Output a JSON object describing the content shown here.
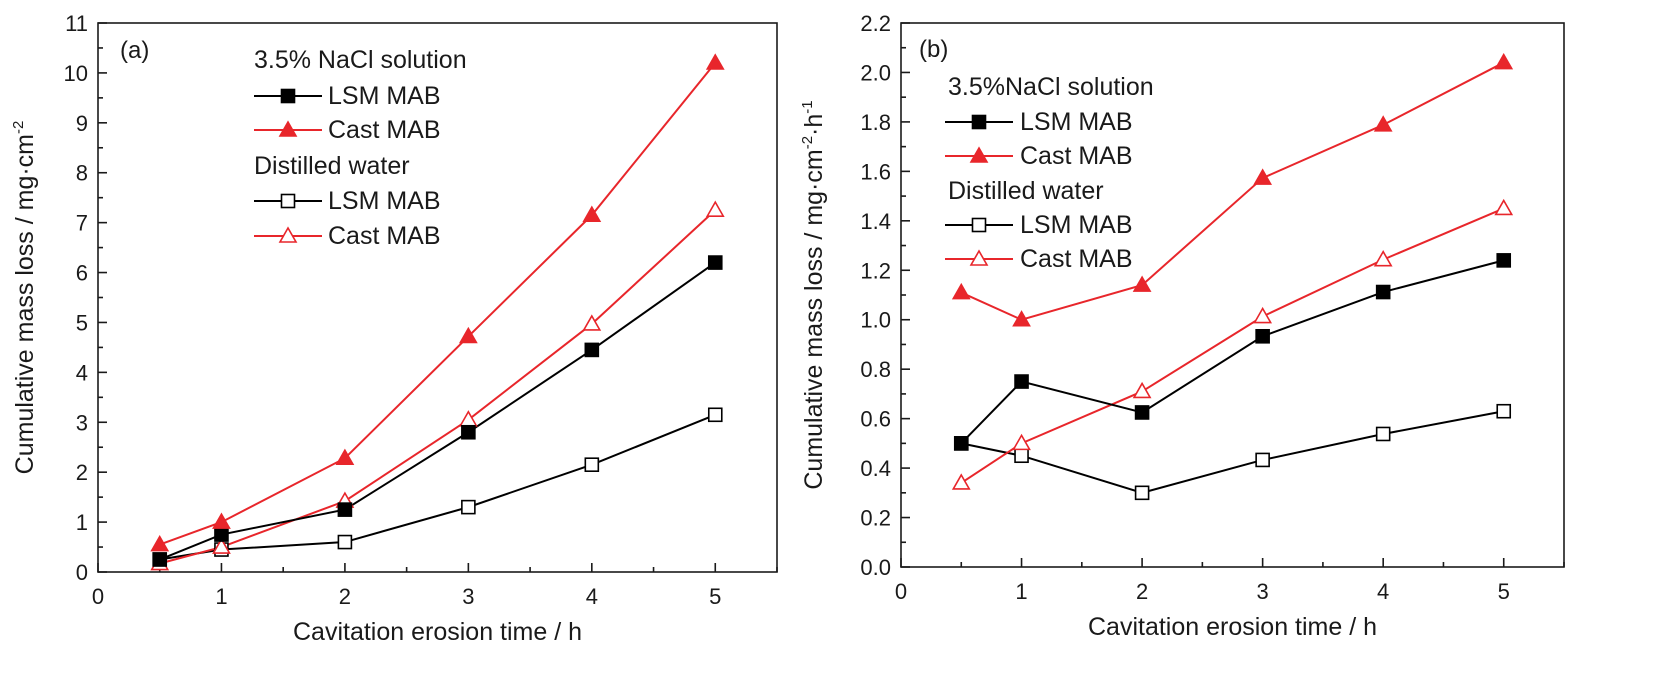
{
  "chart_data": [
    {
      "type": "line",
      "panel_label": "(a)",
      "xlabel": "Cavitation erosion time / h",
      "ylabel": "Cumulative mass loss / mg·cm",
      "ylabel_sup": "-2",
      "xlim": [
        0,
        5.5
      ],
      "ylim": [
        0,
        11
      ],
      "xticks": [
        0,
        1,
        2,
        3,
        4,
        5
      ],
      "yticks": [
        0,
        1,
        2,
        3,
        4,
        5,
        6,
        7,
        8,
        9,
        10,
        11
      ],
      "x": [
        0.5,
        1,
        2,
        3,
        4,
        5
      ],
      "legend_position": "top-left",
      "legend_groups": [
        {
          "title": "3.5% NaCl solution",
          "series": [
            0,
            1
          ]
        },
        {
          "title": "Distilled water",
          "series": [
            2,
            3
          ]
        }
      ],
      "series": [
        {
          "name": "LSM MAB",
          "color": "#000000",
          "marker": "square-filled",
          "values": [
            0.25,
            0.75,
            1.25,
            2.8,
            4.45,
            6.2
          ]
        },
        {
          "name": "Cast MAB",
          "color": "#e8262b",
          "marker": "triangle-filled",
          "values": [
            0.55,
            1.0,
            2.28,
            4.72,
            7.15,
            10.2
          ]
        },
        {
          "name": "LSM MAB",
          "color": "#000000",
          "marker": "square-open",
          "values": [
            0.25,
            0.45,
            0.6,
            1.3,
            2.15,
            3.15
          ]
        },
        {
          "name": "Cast MAB",
          "color": "#e8262b",
          "marker": "triangle-open",
          "values": [
            0.17,
            0.5,
            1.42,
            3.05,
            4.97,
            7.25
          ]
        }
      ]
    },
    {
      "type": "line",
      "panel_label": "(b)",
      "xlabel": "Cavitation erosion time / h",
      "ylabel": "Cumulative mass loss / mg·cm",
      "ylabel_sup": "-2",
      "ylabel_mid": "·h",
      "ylabel_sup2": "-1",
      "xlim": [
        0,
        5.5
      ],
      "ylim": [
        0,
        2.2
      ],
      "xticks": [
        0,
        1,
        2,
        3,
        4,
        5
      ],
      "yticks": [
        0.0,
        0.2,
        0.4,
        0.6,
        0.8,
        1.0,
        1.2,
        1.4,
        1.6,
        1.8,
        2.0,
        2.2
      ],
      "x": [
        0.5,
        1,
        2,
        3,
        4,
        5
      ],
      "legend_position": "top-left",
      "legend_groups": [
        {
          "title": "3.5%NaCl solution",
          "series": [
            0,
            1
          ]
        },
        {
          "title": "Distilled water",
          "series": [
            2,
            3
          ]
        }
      ],
      "series": [
        {
          "name": "LSM MAB",
          "color": "#000000",
          "marker": "square-filled",
          "values": [
            0.5,
            0.75,
            0.625,
            0.933,
            1.112,
            1.24
          ]
        },
        {
          "name": "Cast MAB",
          "color": "#e8262b",
          "marker": "triangle-filled",
          "values": [
            1.11,
            1.0,
            1.14,
            1.573,
            1.788,
            2.04
          ]
        },
        {
          "name": "LSM MAB",
          "color": "#000000",
          "marker": "square-open",
          "values": [
            0.5,
            0.45,
            0.3,
            0.433,
            0.538,
            0.63
          ]
        },
        {
          "name": "Cast MAB",
          "color": "#e8262b",
          "marker": "triangle-open",
          "values": [
            0.34,
            0.5,
            0.71,
            1.013,
            1.243,
            1.45
          ]
        }
      ]
    }
  ]
}
